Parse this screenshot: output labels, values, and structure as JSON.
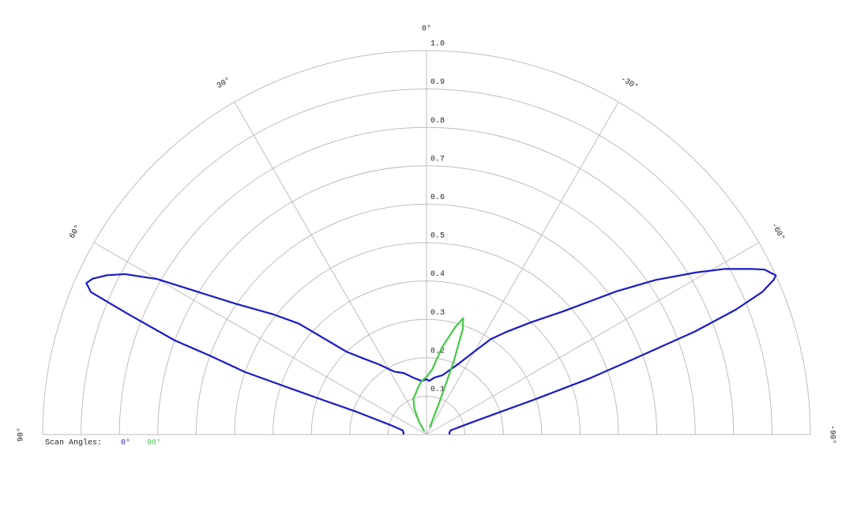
{
  "chart_data": {
    "type": "polar",
    "legend_title": "Scan Angles:",
    "rlim": [
      0,
      1
    ],
    "rticks": [
      0.1,
      0.2,
      0.3,
      0.4,
      0.5,
      0.6,
      0.7,
      0.8,
      0.9,
      {
        "value": 1,
        "label": "1.0"
      }
    ],
    "angle_ticks": [
      {
        "value": 90,
        "label": "90°"
      },
      {
        "value": 60,
        "label": "60°"
      },
      {
        "value": 30,
        "label": "30°"
      },
      {
        "value": 0,
        "label": "0°"
      },
      {
        "value": -30,
        "label": "-30°"
      },
      {
        "value": -60,
        "label": "-60°"
      },
      {
        "value": -90,
        "label": "-90°"
      }
    ],
    "series": [
      {
        "name": "0°",
        "color": "#1a1ac8",
        "x": [
          -90,
          -85,
          -80,
          -75,
          -72,
          -71,
          -70,
          -69,
          -68,
          -67,
          -66,
          -65.5,
          -64,
          -63,
          -61,
          -59,
          -56,
          -53,
          -48,
          -43,
          -38,
          -34,
          -30,
          -24,
          -15,
          -8,
          -3,
          0,
          5,
          12,
          20,
          27,
          34,
          40,
          44,
          49,
          52,
          55.5,
          58,
          60,
          62,
          63.5,
          65,
          66,
          67,
          68,
          69.5,
          70,
          71,
          71.5,
          72,
          75,
          80,
          85,
          90
        ],
        "values": [
          0.06,
          0.06,
          0.064,
          0.12,
          0.3,
          0.45,
          0.57,
          0.75,
          0.87,
          0.95,
          0.99,
          1.0,
          0.98,
          0.95,
          0.89,
          0.82,
          0.72,
          0.62,
          0.48,
          0.4,
          0.34,
          0.3,
          0.25,
          0.2,
          0.16,
          0.15,
          0.14,
          0.144,
          0.14,
          0.15,
          0.17,
          0.184,
          0.22,
          0.26,
          0.3,
          0.44,
          0.51,
          0.6,
          0.7,
          0.81,
          0.89,
          0.93,
          0.96,
          0.97,
          0.95,
          0.84,
          0.7,
          0.6,
          0.5,
          0.3,
          0.19,
          0.1,
          0.063,
          0.06,
          0.06
        ]
      },
      {
        "name": "90°",
        "color": "#44c844",
        "x": [
          -24,
          -22,
          -20.5,
          -19,
          -17.5,
          -15,
          -10,
          -5,
          0,
          5,
          10,
          15,
          20,
          25,
          30,
          35
        ],
        "values": [
          0.02,
          0.08,
          0.2,
          0.29,
          0.318,
          0.29,
          0.23,
          0.17,
          0.15,
          0.14,
          0.125,
          0.11,
          0.1,
          0.075,
          0.04,
          0.01
        ]
      }
    ]
  }
}
